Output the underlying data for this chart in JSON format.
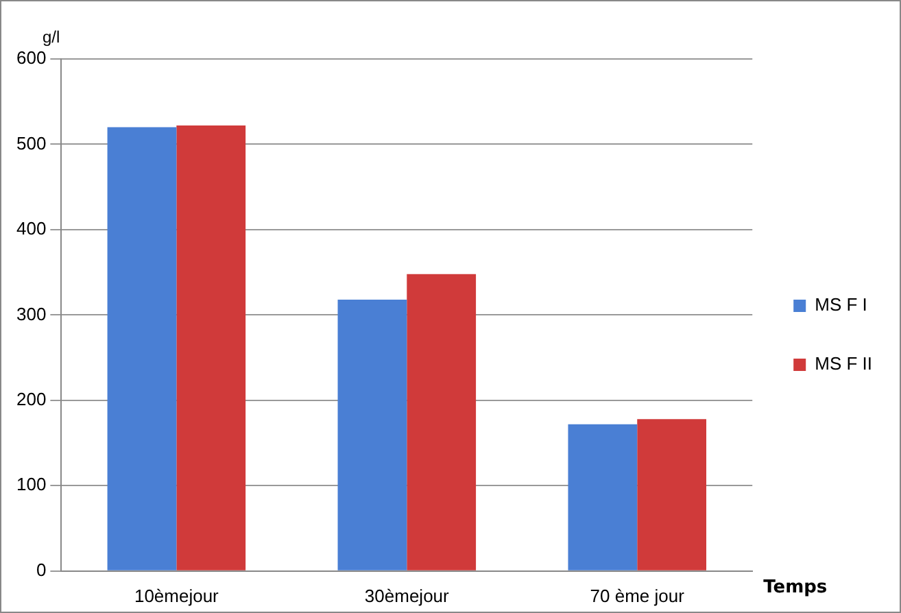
{
  "chart_data": {
    "type": "bar",
    "ylabel": "g/l",
    "xlabel": "Temps",
    "categories": [
      "10èmejour",
      "30èmejour",
      "70 ème jour"
    ],
    "series": [
      {
        "name": "MS F I",
        "color": "#4a7fd4",
        "values": [
          520,
          318,
          172
        ]
      },
      {
        "name": "MS F II",
        "color": "#d03a3a",
        "values": [
          522,
          348,
          178
        ]
      }
    ],
    "ylim": [
      0,
      600
    ],
    "yticks": [
      0,
      100,
      200,
      300,
      400,
      500,
      600
    ],
    "grid": "y",
    "legend": "right"
  }
}
